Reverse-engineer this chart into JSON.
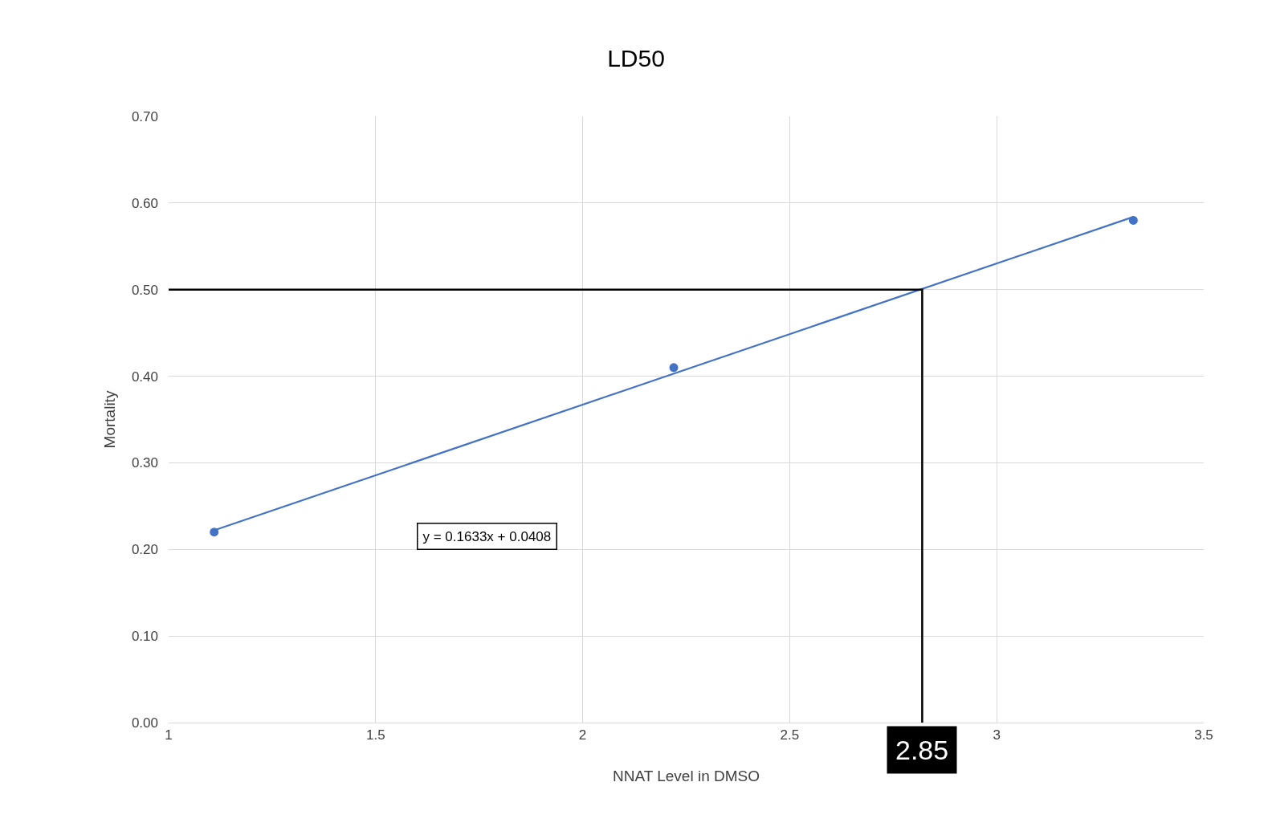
{
  "chart_data": {
    "type": "scatter",
    "title": "LD50",
    "xlabel": "NNAT Level in DMSO",
    "ylabel": "Mortality",
    "xlim": [
      1,
      3.5
    ],
    "xticks": [
      1,
      1.5,
      2,
      2.5,
      3,
      3.5
    ],
    "ylim": [
      0,
      0.7
    ],
    "yticks": [
      {
        "value": 0,
        "label": "0.00"
      },
      {
        "value": 0.1,
        "label": "0.10"
      },
      {
        "value": 0.2,
        "label": "0.20"
      },
      {
        "value": 0.3,
        "label": "0.30"
      },
      {
        "value": 0.4,
        "label": "0.40"
      },
      {
        "value": 0.5,
        "label": "0.50"
      },
      {
        "value": 0.6,
        "label": "0.60"
      },
      {
        "value": 0.7,
        "label": "0.70"
      }
    ],
    "grid": true,
    "marker": "circle",
    "series": [
      {
        "color": "#4472c4",
        "x": [
          1.11,
          2.22,
          3.33
        ],
        "values": [
          0.22,
          0.41,
          0.58
        ]
      },
      {
        "type": "line",
        "color": "#4472c4",
        "marker": "none",
        "x": [
          1.11,
          3.33
        ],
        "values": [
          0.222,
          0.584
        ]
      },
      {
        "type": "line",
        "color": "#000000",
        "marker": "none",
        "x": [
          1,
          2.82,
          2.82
        ],
        "values": [
          0.5,
          0.5,
          0
        ]
      }
    ],
    "annotations": [
      "y = 0.1633x + 0.0408",
      {
        "text": "2.85",
        "x": 2.82,
        "y": 0
      }
    ]
  }
}
